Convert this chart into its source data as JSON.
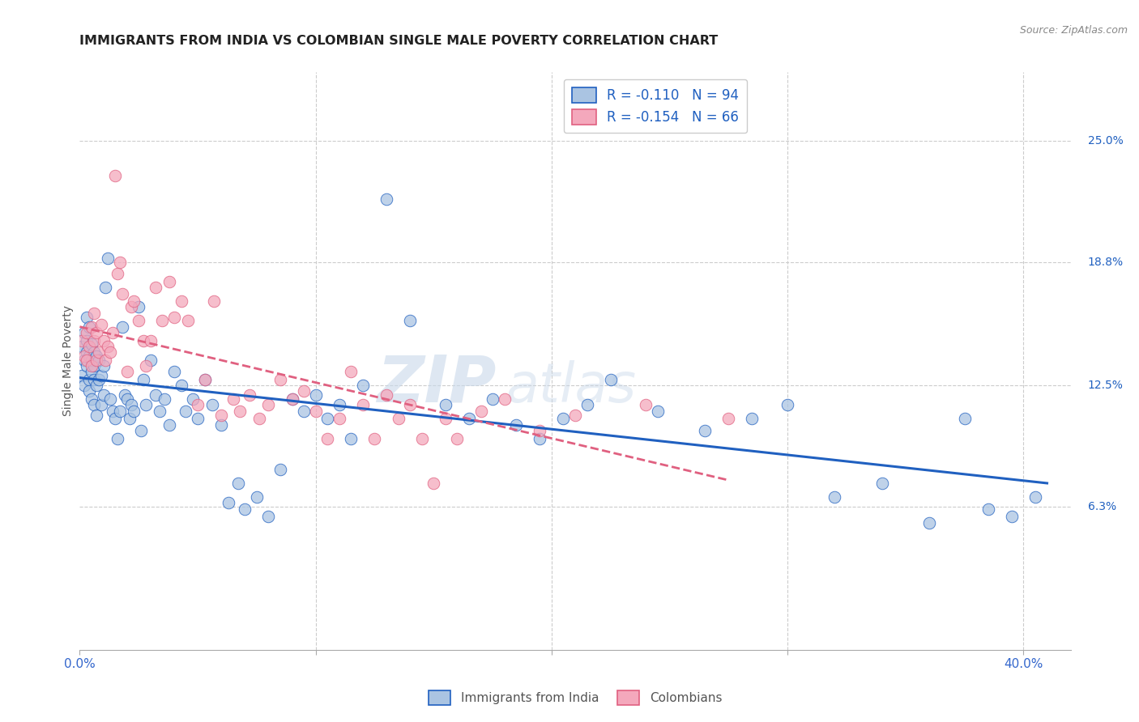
{
  "title": "IMMIGRANTS FROM INDIA VS COLOMBIAN SINGLE MALE POVERTY CORRELATION CHART",
  "source": "Source: ZipAtlas.com",
  "ylabel": "Single Male Poverty",
  "xlim": [
    0.0,
    0.42
  ],
  "ylim": [
    -0.01,
    0.285
  ],
  "ytick_values": [
    0.063,
    0.125,
    0.188,
    0.25
  ],
  "ytick_labels": [
    "6.3%",
    "12.5%",
    "18.8%",
    "25.0%"
  ],
  "xtick_values": [
    0.0,
    0.4
  ],
  "xtick_labels": [
    "0.0%",
    "40.0%"
  ],
  "legend_label1": "Immigrants from India",
  "legend_label2": "Colombians",
  "R1": -0.11,
  "N1": 94,
  "R2": -0.154,
  "N2": 66,
  "color_india": "#aac4e2",
  "color_colombia": "#f4a8bc",
  "line_color_india": "#2060c0",
  "line_color_colombia": "#e06080",
  "watermark_zip": "ZIP",
  "watermark_atlas": "atlas",
  "background_color": "#ffffff",
  "grid_color": "#cccccc",
  "india_x": [
    0.001,
    0.001,
    0.002,
    0.002,
    0.002,
    0.003,
    0.003,
    0.003,
    0.003,
    0.004,
    0.004,
    0.004,
    0.004,
    0.005,
    0.005,
    0.005,
    0.005,
    0.006,
    0.006,
    0.006,
    0.006,
    0.007,
    0.007,
    0.007,
    0.008,
    0.008,
    0.009,
    0.009,
    0.01,
    0.01,
    0.011,
    0.012,
    0.013,
    0.014,
    0.015,
    0.016,
    0.017,
    0.018,
    0.019,
    0.02,
    0.021,
    0.022,
    0.023,
    0.025,
    0.026,
    0.027,
    0.028,
    0.03,
    0.032,
    0.034,
    0.036,
    0.038,
    0.04,
    0.043,
    0.045,
    0.048,
    0.05,
    0.053,
    0.056,
    0.06,
    0.063,
    0.067,
    0.07,
    0.075,
    0.08,
    0.085,
    0.09,
    0.095,
    0.1,
    0.105,
    0.11,
    0.115,
    0.12,
    0.13,
    0.14,
    0.155,
    0.165,
    0.175,
    0.185,
    0.195,
    0.205,
    0.215,
    0.225,
    0.245,
    0.265,
    0.285,
    0.3,
    0.32,
    0.34,
    0.36,
    0.375,
    0.385,
    0.395,
    0.405
  ],
  "india_y": [
    0.13,
    0.145,
    0.138,
    0.152,
    0.125,
    0.142,
    0.135,
    0.148,
    0.16,
    0.128,
    0.14,
    0.155,
    0.122,
    0.132,
    0.146,
    0.118,
    0.138,
    0.128,
    0.142,
    0.115,
    0.135,
    0.125,
    0.14,
    0.11,
    0.128,
    0.138,
    0.115,
    0.13,
    0.12,
    0.135,
    0.175,
    0.19,
    0.118,
    0.112,
    0.108,
    0.098,
    0.112,
    0.155,
    0.12,
    0.118,
    0.108,
    0.115,
    0.112,
    0.165,
    0.102,
    0.128,
    0.115,
    0.138,
    0.12,
    0.112,
    0.118,
    0.105,
    0.132,
    0.125,
    0.112,
    0.118,
    0.108,
    0.128,
    0.115,
    0.105,
    0.065,
    0.075,
    0.062,
    0.068,
    0.058,
    0.082,
    0.118,
    0.112,
    0.12,
    0.108,
    0.115,
    0.098,
    0.125,
    0.22,
    0.158,
    0.115,
    0.108,
    0.118,
    0.105,
    0.098,
    0.108,
    0.115,
    0.128,
    0.112,
    0.102,
    0.108,
    0.115,
    0.068,
    0.075,
    0.055,
    0.108,
    0.062,
    0.058,
    0.068
  ],
  "colombia_x": [
    0.001,
    0.002,
    0.003,
    0.003,
    0.004,
    0.005,
    0.005,
    0.006,
    0.006,
    0.007,
    0.007,
    0.008,
    0.009,
    0.01,
    0.011,
    0.012,
    0.013,
    0.014,
    0.015,
    0.016,
    0.017,
    0.018,
    0.02,
    0.022,
    0.023,
    0.025,
    0.027,
    0.028,
    0.03,
    0.032,
    0.035,
    0.038,
    0.04,
    0.043,
    0.046,
    0.05,
    0.053,
    0.057,
    0.06,
    0.065,
    0.068,
    0.072,
    0.076,
    0.08,
    0.085,
    0.09,
    0.095,
    0.1,
    0.105,
    0.11,
    0.115,
    0.12,
    0.125,
    0.13,
    0.135,
    0.14,
    0.145,
    0.15,
    0.155,
    0.16,
    0.17,
    0.18,
    0.195,
    0.21,
    0.24,
    0.275
  ],
  "colombia_y": [
    0.148,
    0.14,
    0.152,
    0.138,
    0.145,
    0.155,
    0.135,
    0.148,
    0.162,
    0.138,
    0.152,
    0.142,
    0.156,
    0.148,
    0.138,
    0.145,
    0.142,
    0.152,
    0.232,
    0.182,
    0.188,
    0.172,
    0.132,
    0.165,
    0.168,
    0.158,
    0.148,
    0.135,
    0.148,
    0.175,
    0.158,
    0.178,
    0.16,
    0.168,
    0.158,
    0.115,
    0.128,
    0.168,
    0.11,
    0.118,
    0.112,
    0.12,
    0.108,
    0.115,
    0.128,
    0.118,
    0.122,
    0.112,
    0.098,
    0.108,
    0.132,
    0.115,
    0.098,
    0.12,
    0.108,
    0.115,
    0.098,
    0.075,
    0.108,
    0.098,
    0.112,
    0.118,
    0.102,
    0.11,
    0.115,
    0.108
  ]
}
